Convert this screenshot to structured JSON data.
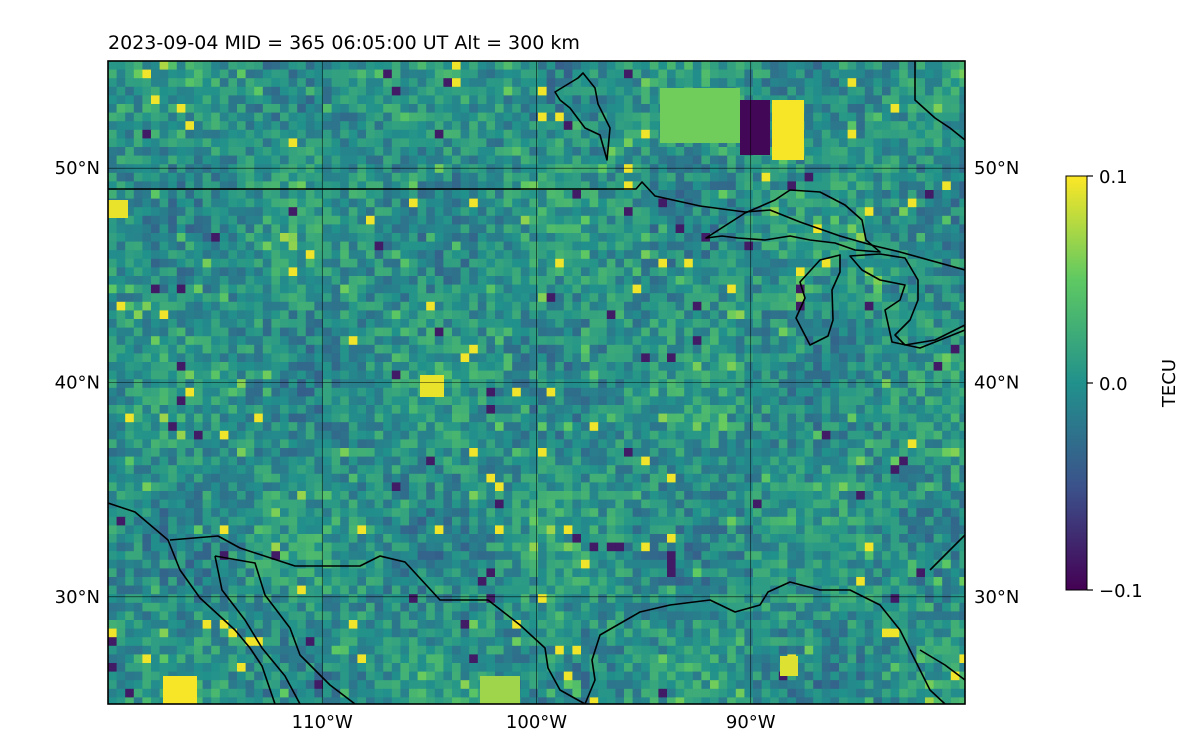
{
  "title": "2023-09-04  MID = 365    06:05:00  UT  Alt = 300 km",
  "map": {
    "projection": "PlateCarree",
    "extent": {
      "lon": [
        -120,
        -80
      ],
      "lat": [
        25,
        55
      ]
    },
    "gridlines": true,
    "lon_ticks": [
      {
        "value": -110,
        "label": "110°W"
      },
      {
        "value": -100,
        "label": "100°W"
      },
      {
        "value": -90,
        "label": "90°W"
      }
    ],
    "lat_ticks": [
      {
        "value": 30,
        "label": "30°N"
      },
      {
        "value": 40,
        "label": "40°N"
      },
      {
        "value": 50,
        "label": "50°N"
      }
    ]
  },
  "colorbar": {
    "label": "TECU",
    "colormap": "viridis",
    "colors": [
      "#440154",
      "#3b528b",
      "#21918c",
      "#5ec962",
      "#fde725"
    ],
    "ticks": [
      {
        "value": 0.1,
        "label": "0.1"
      },
      {
        "value": 0.0,
        "label": "0.0"
      },
      {
        "value": -0.1,
        "label": "−0.1"
      }
    ],
    "range": [
      -0.1,
      0.1
    ]
  }
}
